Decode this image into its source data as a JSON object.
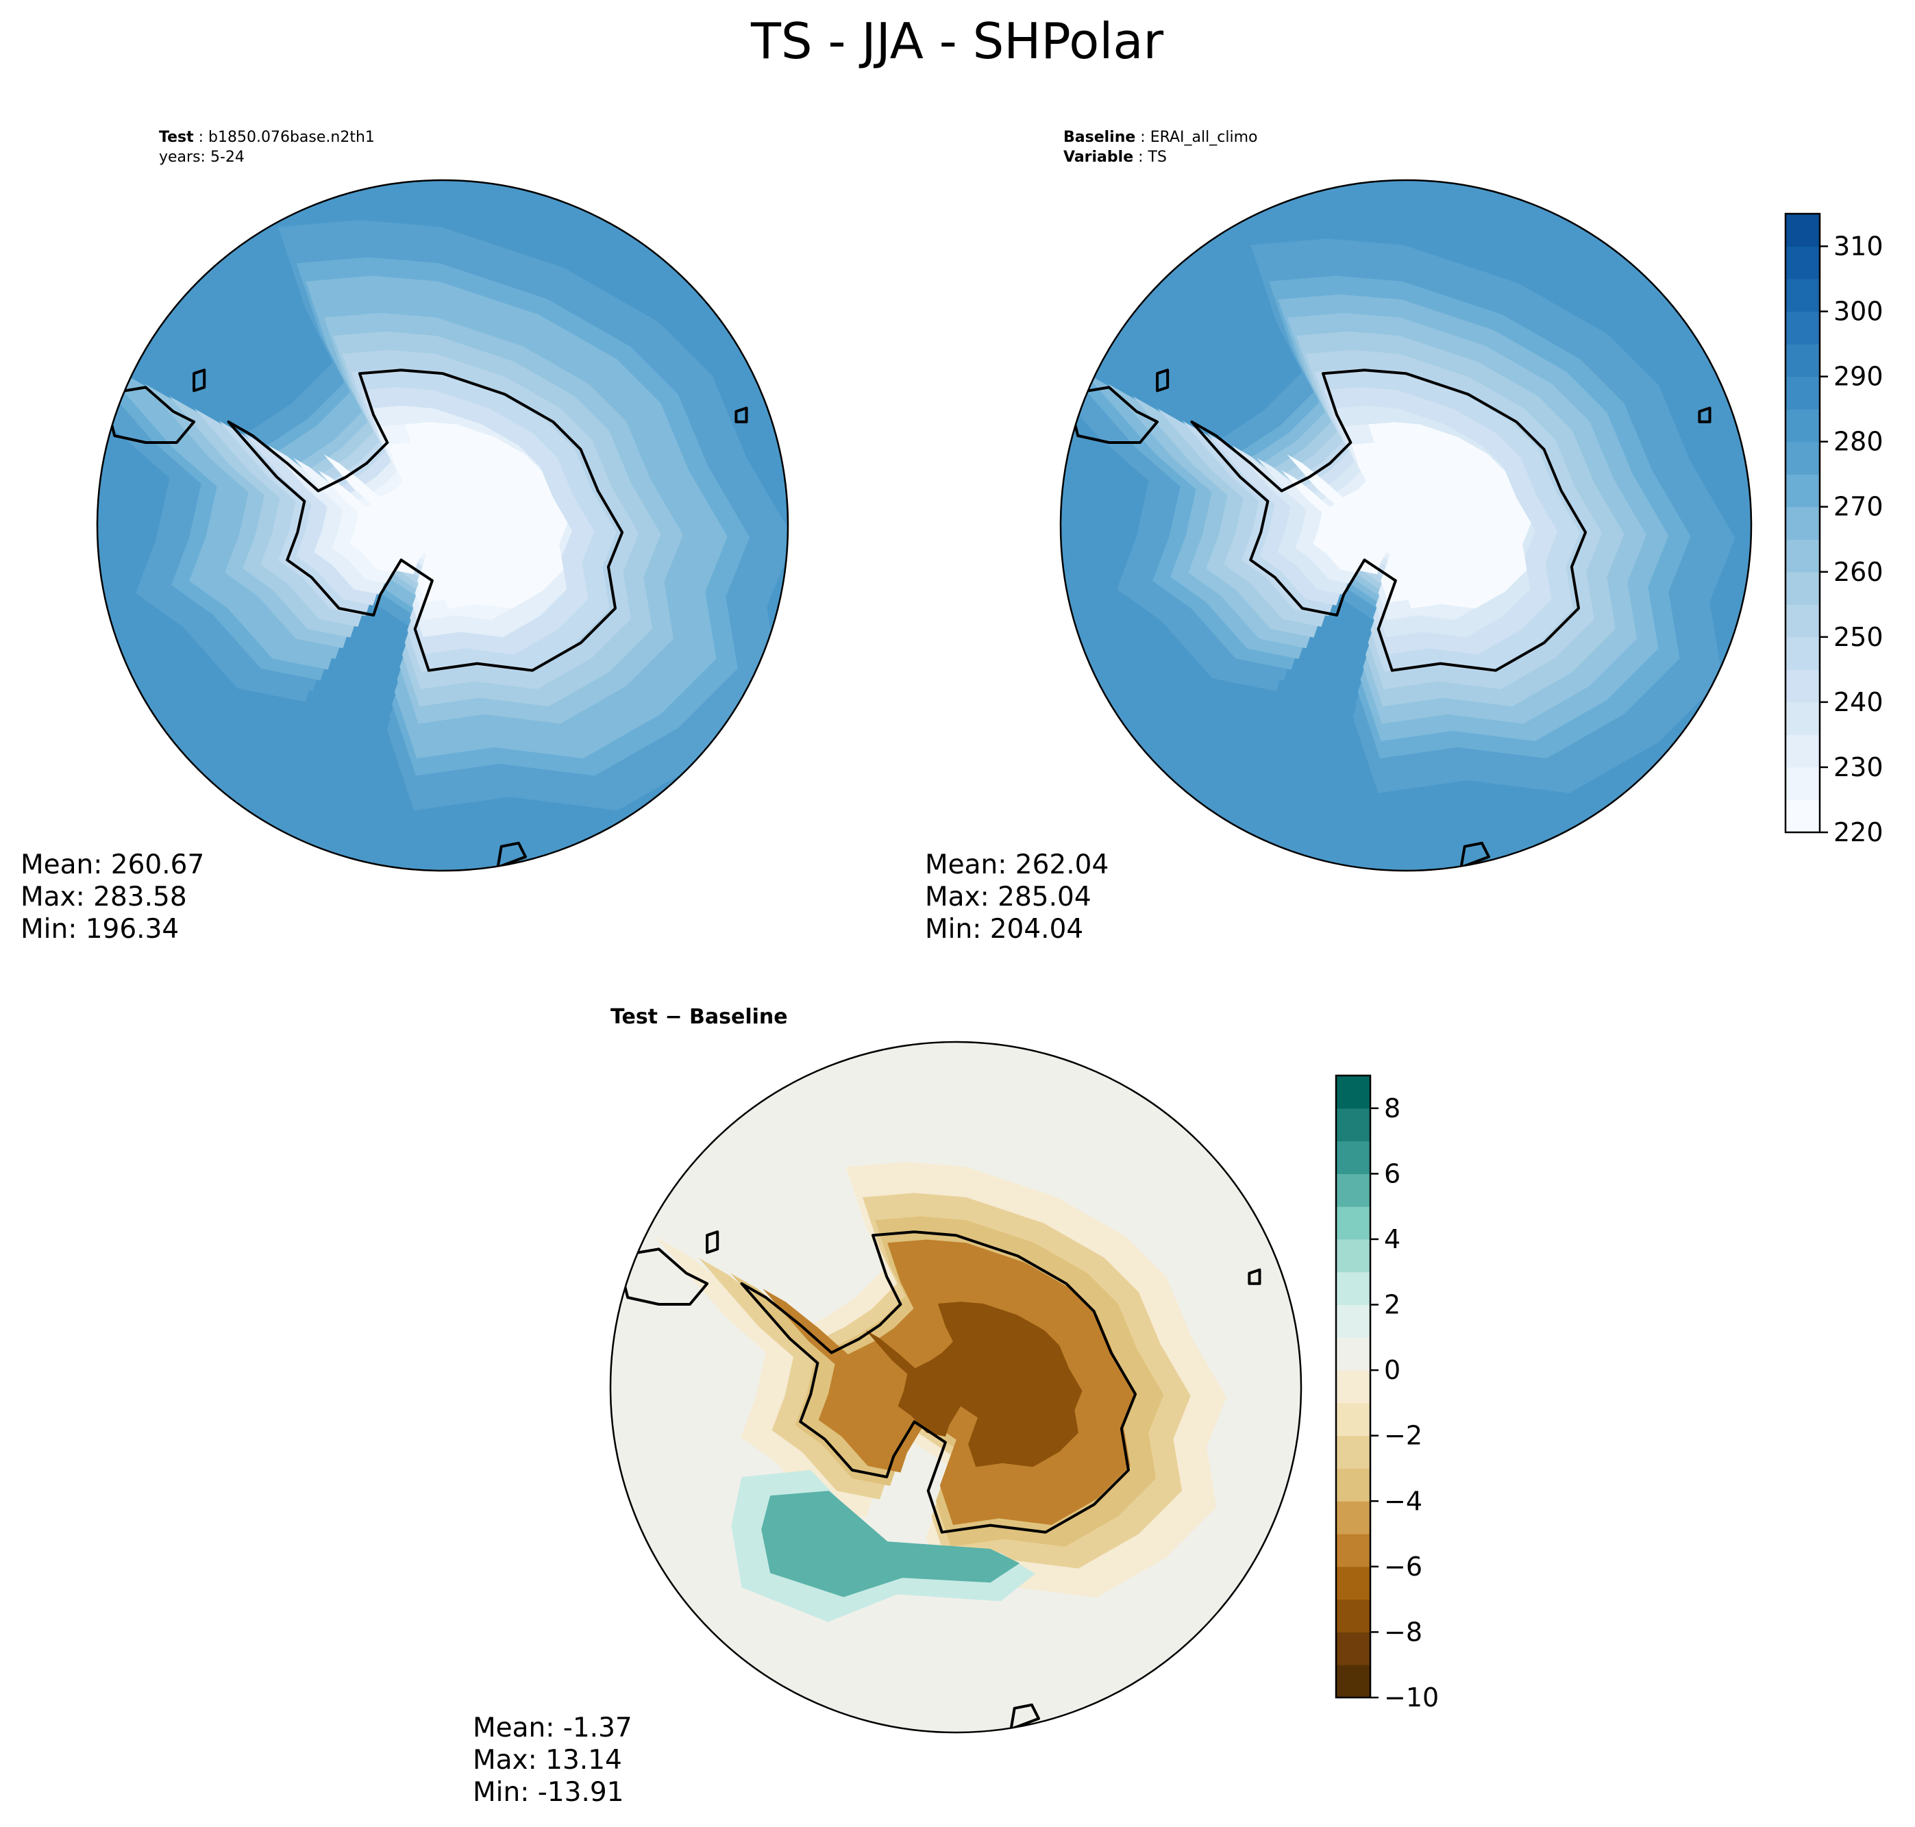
{
  "figure": {
    "suptitle": "TS - JJA - SHPolar"
  },
  "chart_data": [
    {
      "type": "heatmap",
      "panel": "test",
      "projection": "south-polar-stereographic",
      "header": [
        {
          "bold": "Test",
          "text": "b1850.076base.n2th1"
        },
        {
          "bold": "",
          "text": "years: 5-24"
        }
      ],
      "stats": {
        "mean": "Mean: 260.67",
        "max": "Max: 283.58",
        "min": "Min: 196.34"
      },
      "field": {
        "pole_value": 222,
        "ocean_value": 281,
        "continent": "Antarctica",
        "units_scale": "colorbar-1"
      }
    },
    {
      "type": "heatmap",
      "panel": "baseline",
      "projection": "south-polar-stereographic",
      "header": [
        {
          "bold": "Baseline",
          "text": "ERAI_all_climo"
        },
        {
          "bold": "Variable",
          "text": "TS"
        }
      ],
      "stats": {
        "mean": "Mean: 262.04",
        "max": "Max: 285.04",
        "min": "Min: 204.04"
      },
      "field": {
        "pole_value": 224,
        "ocean_value": 283,
        "continent": "Antarctica",
        "units_scale": "colorbar-1"
      }
    },
    {
      "type": "heatmap",
      "panel": "difference",
      "projection": "south-polar-stereographic",
      "title": "Test − Baseline",
      "stats": {
        "mean": "Mean: -1.37",
        "max": "Max: 13.14",
        "min": "Min: -13.91"
      },
      "field": {
        "continent_anomaly": -5,
        "ocean_anomaly": 0.5,
        "positive_band_value": 5,
        "units_scale": "colorbar-2"
      }
    }
  ],
  "colorbars": [
    {
      "name": "absolute",
      "vmin": 220,
      "vmax": 315,
      "ticks": [
        220,
        230,
        240,
        250,
        260,
        270,
        280,
        290,
        300,
        310
      ],
      "tick_labels": [
        "220",
        "230",
        "240",
        "250",
        "260",
        "270",
        "280",
        "290",
        "300",
        "310"
      ],
      "levels": [
        220,
        225,
        230,
        235,
        240,
        245,
        250,
        255,
        260,
        265,
        270,
        275,
        280,
        285,
        290,
        295,
        300,
        305,
        310,
        315
      ],
      "colors": [
        "#f7fbff",
        "#eef5fc",
        "#e4eff9",
        "#d9e8f5",
        "#cfe1f2",
        "#c3dbef",
        "#b6d4e9",
        "#a6cde4",
        "#94c4df",
        "#81badb",
        "#6aaed6",
        "#58a1cf",
        "#4a98c9",
        "#3d8dc4",
        "#3282be",
        "#2676b8",
        "#1b69af",
        "#115ca5",
        "#0a4f98",
        "#08418a",
        "#08306b"
      ]
    },
    {
      "name": "difference",
      "vmin": -10,
      "vmax": 9,
      "ticks": [
        -10,
        -8,
        -6,
        -4,
        -2,
        0,
        2,
        4,
        6,
        8
      ],
      "tick_labels": [
        "−10",
        "−8",
        "−6",
        "−4",
        "−2",
        "0",
        "2",
        "4",
        "6",
        "8"
      ],
      "levels": [
        -10,
        -9,
        -8,
        -7,
        -6,
        -5,
        -4,
        -3,
        -2,
        -1,
        0,
        1,
        2,
        3,
        4,
        5,
        6,
        7,
        8,
        9
      ],
      "colors": [
        "#543005",
        "#6f3e0a",
        "#8c510a",
        "#a5640f",
        "#bf812d",
        "#d0a050",
        "#dfc27d",
        "#e8d198",
        "#f2e3bb",
        "#f6ebd3",
        "#f0f0ea",
        "#dff0ed",
        "#c7eae5",
        "#a4dbd1",
        "#80cdc1",
        "#5ab2a8",
        "#35978f",
        "#1d7f77",
        "#01665e",
        "#00523f"
      ]
    }
  ]
}
